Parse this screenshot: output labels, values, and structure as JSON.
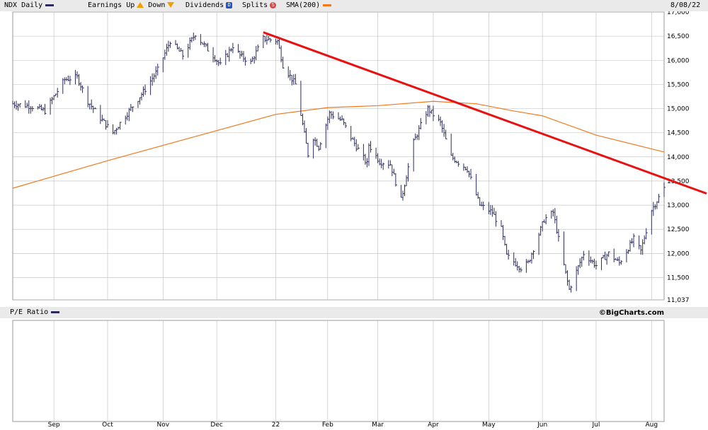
{
  "header": {
    "symbol_label": "NDX Daily",
    "earnings_label": "Earnings",
    "up_label": "Up",
    "down_label": "Down",
    "dividends_label": "Dividends",
    "dividends_icon_letter": "D",
    "splits_label": "Splits",
    "splits_icon_letter": "S",
    "sma_label": "SMA(200)",
    "date": "8/08/22"
  },
  "lower_panel": {
    "label": "P/E Ratio",
    "credit": "©BigCharts.com"
  },
  "colors": {
    "price": "#2b2b5e",
    "sma": "#f07a20",
    "trendline": "#e81010",
    "up": "#f0a000",
    "dividend": "#2255cc",
    "split": "#dd4444",
    "grid": "#bbbbbb"
  },
  "chart_data": {
    "type": "line",
    "subtype": "ohlc-bars",
    "xlim": [
      "2021-08-09",
      "2022-08-08"
    ],
    "ylim": [
      11037,
      17000
    ],
    "y_ticks": [
      "11,037",
      "11,500",
      "12,000",
      "12,500",
      "13,000",
      "13,500",
      "14,000",
      "14,500",
      "15,000",
      "15,500",
      "16,000",
      "16,500",
      "17,000"
    ],
    "y_tick_values": [
      11037,
      11500,
      12000,
      12500,
      13000,
      13500,
      14000,
      14500,
      15000,
      15500,
      16000,
      16500,
      17000
    ],
    "x_ticks": [
      {
        "label": "Sep",
        "date": "2021-09-01"
      },
      {
        "label": "Oct",
        "date": "2021-10-01"
      },
      {
        "label": "Nov",
        "date": "2021-11-01"
      },
      {
        "label": "Dec",
        "date": "2021-12-01"
      },
      {
        "label": "22",
        "date": "2022-01-03"
      },
      {
        "label": "Feb",
        "date": "2022-02-01"
      },
      {
        "label": "Mar",
        "date": "2022-03-01"
      },
      {
        "label": "Apr",
        "date": "2022-04-01"
      },
      {
        "label": "May",
        "date": "2022-05-02"
      },
      {
        "label": "Jun",
        "date": "2022-06-01"
      },
      {
        "label": "Jul",
        "date": "2022-07-01"
      },
      {
        "label": "Aug",
        "date": "2022-08-01"
      }
    ],
    "grid": true,
    "series": [
      {
        "name": "NDX Daily",
        "style": "ohlc",
        "x": [
          "2021-08-09",
          "2021-08-19",
          "2021-08-27",
          "2021-09-07",
          "2021-09-14",
          "2021-09-20",
          "2021-09-27",
          "2021-10-04",
          "2021-10-08",
          "2021-10-14",
          "2021-10-22",
          "2021-10-29",
          "2021-11-05",
          "2021-11-12",
          "2021-11-19",
          "2021-11-22",
          "2021-11-30",
          "2021-12-03",
          "2021-12-10",
          "2021-12-14",
          "2021-12-20",
          "2021-12-27",
          "2022-01-04",
          "2022-01-07",
          "2022-01-14",
          "2022-01-21",
          "2022-01-24",
          "2022-01-27",
          "2022-02-02",
          "2022-02-09",
          "2022-02-14",
          "2022-02-23",
          "2022-02-24",
          "2022-03-02",
          "2022-03-08",
          "2022-03-14",
          "2022-03-21",
          "2022-03-29",
          "2022-04-05",
          "2022-04-11",
          "2022-04-20",
          "2022-04-27",
          "2022-05-04",
          "2022-05-09",
          "2022-05-12",
          "2022-05-20",
          "2022-05-24",
          "2022-06-02",
          "2022-06-07",
          "2022-06-13",
          "2022-06-16",
          "2022-06-24",
          "2022-07-01",
          "2022-07-08",
          "2022-07-14",
          "2022-07-22",
          "2022-07-26",
          "2022-08-01",
          "2022-08-08"
        ],
        "values": [
          15100,
          15050,
          14950,
          15600,
          15650,
          15150,
          14800,
          14500,
          14700,
          15000,
          15400,
          15800,
          16400,
          16100,
          16550,
          16400,
          16050,
          15900,
          16300,
          16100,
          15950,
          16450,
          16400,
          15900,
          15500,
          14050,
          14400,
          14200,
          14900,
          14750,
          14400,
          13850,
          14250,
          13900,
          13850,
          13100,
          14300,
          15000,
          14700,
          14000,
          13750,
          13000,
          12850,
          12500,
          11950,
          11700,
          11800,
          12700,
          12850,
          11750,
          11250,
          12000,
          11750,
          12000,
          11800,
          12300,
          12050,
          12900,
          13350
        ]
      },
      {
        "name": "SMA(200)",
        "x": [
          "2021-08-09",
          "2021-10-01",
          "2021-11-15",
          "2022-01-03",
          "2022-02-01",
          "2022-03-01",
          "2022-04-01",
          "2022-04-25",
          "2022-05-16",
          "2022-06-01",
          "2022-07-01",
          "2022-08-08"
        ],
        "values": [
          13350,
          13920,
          14380,
          14880,
          15020,
          15060,
          15150,
          15100,
          14950,
          14850,
          14450,
          14100
        ]
      },
      {
        "name": "Trend line",
        "x": [
          "2021-12-27",
          "2022-08-08"
        ],
        "values": [
          16580,
          13560
        ]
      }
    ]
  }
}
